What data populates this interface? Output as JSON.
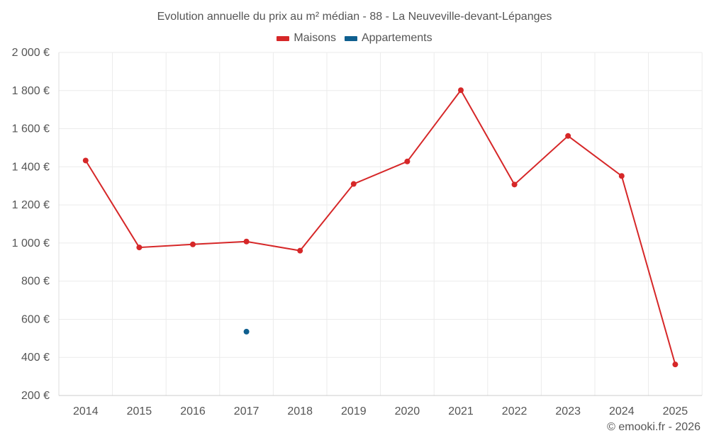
{
  "chart_data": {
    "type": "line",
    "title": "Evolution annuelle du prix au m² médian - 88 - La Neuveville-devant-Lépanges",
    "categories": [
      "2014",
      "2015",
      "2016",
      "2017",
      "2018",
      "2019",
      "2020",
      "2021",
      "2022",
      "2023",
      "2024",
      "2025"
    ],
    "y_ticks": [
      200,
      400,
      600,
      800,
      1000,
      1200,
      1400,
      1600,
      1800,
      2000
    ],
    "y_tick_labels": [
      "200 €",
      "400 €",
      "600 €",
      "800 €",
      "1 000 €",
      "1 200 €",
      "1 400 €",
      "1 600 €",
      "1 800 €",
      "2 000 €"
    ],
    "ylim": [
      200,
      2000
    ],
    "xlabel": "",
    "ylabel": "",
    "grid": true,
    "legend_position": "top-center",
    "series": [
      {
        "name": "Maisons",
        "color": "#d62728",
        "values": [
          1433,
          977,
          993,
          1008,
          960,
          1310,
          1428,
          1802,
          1307,
          1562,
          1352,
          363
        ]
      },
      {
        "name": "Appartements",
        "color": "#0f5f8f",
        "values": [
          null,
          null,
          null,
          535,
          null,
          null,
          null,
          null,
          null,
          null,
          null,
          null
        ]
      }
    ]
  },
  "credit": "© emooki.fr - 2026"
}
